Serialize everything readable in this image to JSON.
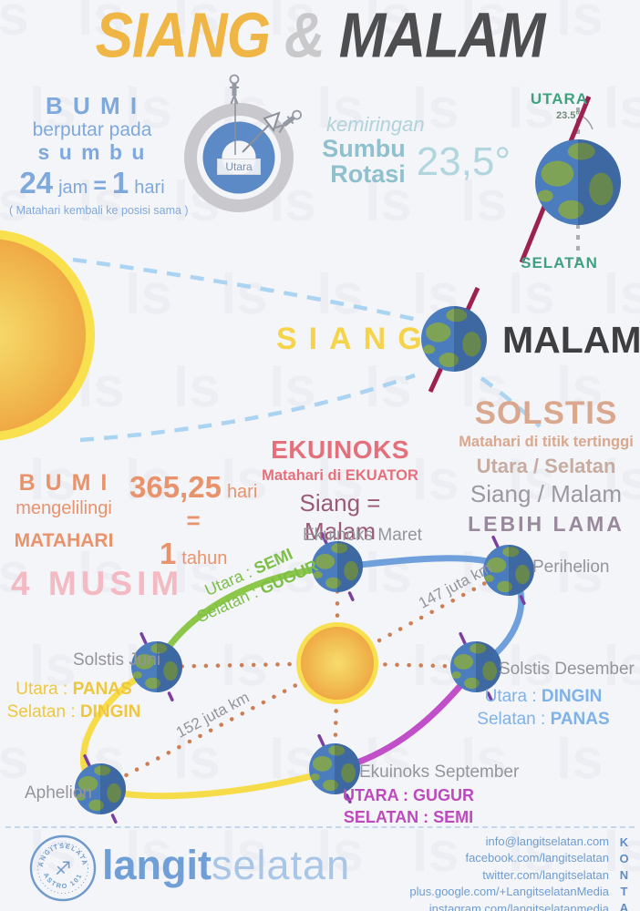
{
  "title": {
    "siang": "SIANG",
    "amp": "&",
    "malam": "MALAM"
  },
  "rotation": {
    "bumi": "B U M I",
    "line1": "berputar pada",
    "sumbu": "s u m b u",
    "num24": "24",
    "jam": "jam",
    "eq": "=",
    "num1": "1",
    "hari": "hari",
    "note": "( Matahari kembali ke posisi sama )",
    "compass_center": "Utara"
  },
  "tilt": {
    "kemiringan": "kemiringan",
    "sumbu": "Sumbu",
    "rotasi": "Rotasi",
    "angle": "23,5°",
    "earth_angle": "23.5°",
    "utara": "UTARA",
    "selatan": "SELATAN"
  },
  "day_night": {
    "siang": "SIANG",
    "malam": "MALAM"
  },
  "solstis": {
    "title": "SOLSTIS",
    "line1": "Matahari di titik tertinggi",
    "line2": "Utara / Selatan",
    "line3": "Siang / Malam",
    "line4": "LEBIH LAMA"
  },
  "ekuinoks": {
    "title": "EKUINOKS",
    "line1": "Matahari di EKUATOR",
    "line2": "Siang = Malam"
  },
  "revolution": {
    "bumi": "B U M I",
    "line1": "mengelilingi",
    "matahari": "MATAHARI",
    "days": "365,25",
    "hari": "hari",
    "eq": "=",
    "num1": "1",
    "tahun": "tahun"
  },
  "musim": {
    "title": "4 MUSIM"
  },
  "orbit": {
    "ekuinoks_maret": "Ekuinoks Maret",
    "perihelion": "Perihelion",
    "solstis_desember": "Solstis Desember",
    "solstis_juni": "Solstis Juni",
    "aphelion": "Aphelion",
    "ekuinoks_september": "Ekuinoks September",
    "dist_perihelion": "147 juta km",
    "dist_aphelion": "152 juta km",
    "seasons_maret": {
      "l1_pre": "Utara : ",
      "l1_val": "SEMI",
      "l2_pre": "Selatan : ",
      "l2_val": "GUGUR"
    },
    "seasons_juni": {
      "l1_pre": "Utara : ",
      "l1_val": "PANAS",
      "l2_pre": "Selatan : ",
      "l2_val": "DINGIN"
    },
    "seasons_desember": {
      "l1_pre": "Utara : ",
      "l1_val": "DINGIN",
      "l2_pre": "Selatan : ",
      "l2_val": "PANAS"
    },
    "seasons_september": {
      "l1_pre": "UTARA : ",
      "l1_val": "GUGUR",
      "l2_pre": "SELATAN : ",
      "l2_val": "SEMI"
    }
  },
  "footer": {
    "logo_bold": "langit",
    "logo_light": "selatan",
    "stamp_top": "LANGITSELATAN",
    "stamp_bottom": "ASTRO 101",
    "stamp_glyph": "♐",
    "contacts": [
      "info@langitselatan.com",
      "facebook.com/langitselatan",
      "twitter.com/langitselatan",
      "plus.google.com/+LangitselatanMedia",
      "instagram.com/langitselatanmedia"
    ],
    "kontak": "KONTAK"
  },
  "colors": {
    "title_yellow": "#efb646",
    "title_dark": "#4e4e50",
    "blue_text": "#7fa9dc",
    "teal": "#8fc0cd",
    "green_label": "#3fa27e",
    "maroon_axis": "#9c2150",
    "salmon": "#e8936c",
    "pink_ekuinoks": "#e4707b",
    "tan_solstis": "#d9a88e",
    "pink_musim": "#f3bac3",
    "orbit_green": "#8cc74a",
    "orbit_blue": "#6fa0dc",
    "orbit_magenta": "#c14fc9",
    "orbit_yellow": "#f7dc49",
    "dots_orange": "#cc7e54",
    "footer_blue": "#6f9cd0"
  },
  "watermark": "ls"
}
